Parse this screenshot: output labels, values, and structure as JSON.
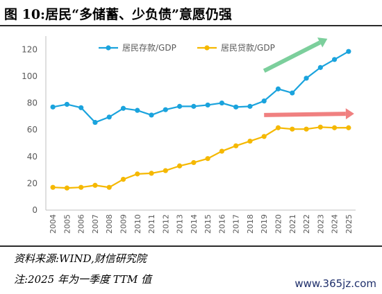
{
  "header": {
    "title": "图 10:居民“多储蓄、少负债”意愿仍强"
  },
  "chart_data": {
    "type": "line",
    "x": [
      "2004",
      "2005",
      "2006",
      "2007",
      "2008",
      "2009",
      "2010",
      "2011",
      "2012",
      "2013",
      "2014",
      "2015",
      "2016",
      "2017",
      "2018",
      "2019",
      "2020",
      "2021",
      "2022",
      "2023",
      "2024",
      "2025"
    ],
    "series": [
      {
        "name": "居民存款/GDP",
        "color": "#1aa3dd",
        "values": [
          77,
          79,
          76.5,
          65.5,
          69.5,
          76,
          74.5,
          71,
          75,
          77.5,
          77.5,
          78.5,
          80,
          77,
          77.5,
          81.5,
          90.5,
          87.5,
          98.5,
          106.5,
          112.5,
          118.5
        ]
      },
      {
        "name": "居民贷款/GDP",
        "color": "#f5b800",
        "values": [
          17,
          16.5,
          17,
          18.5,
          17,
          23,
          27,
          27.5,
          29.5,
          33,
          35.5,
          38.5,
          44,
          48,
          51.5,
          55,
          61.5,
          60.5,
          60.5,
          62,
          61.5,
          61.5
        ]
      }
    ],
    "y_ticks": [
      0,
      20,
      40,
      60,
      80,
      100,
      120
    ],
    "ylim": [
      0,
      130
    ],
    "grid": false,
    "legend_position": "top-center",
    "annotations": [
      {
        "kind": "arrow",
        "color": "#7ccf9c",
        "direction": "up-right",
        "from_year": "2019",
        "to_year": "2023"
      },
      {
        "kind": "arrow",
        "color": "#f08080",
        "direction": "right",
        "from_year": "2019",
        "to_year": "2025"
      }
    ]
  },
  "footer": {
    "source": "资料来源:WIND,财信研究院",
    "note": "注:2025 年为一季度 TTM 值"
  },
  "watermark": "www.365jz.com"
}
